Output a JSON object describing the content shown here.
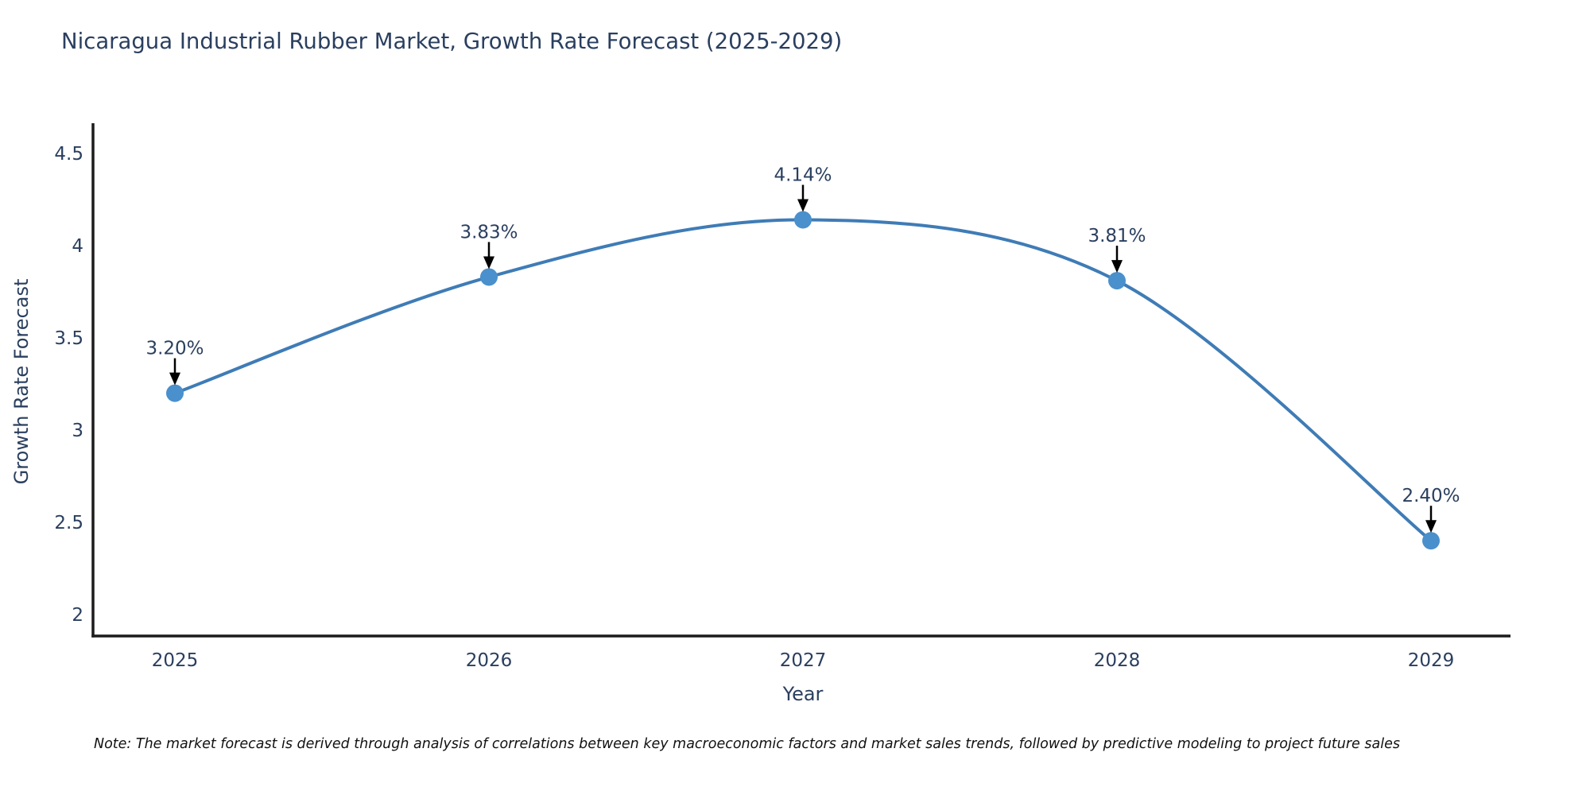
{
  "page": {
    "background": "#ffffff"
  },
  "chart_data": {
    "type": "line",
    "title": "Nicaragua Industrial Rubber Market, Growth Rate Forecast (2025-2029)",
    "xlabel": "Year",
    "ylabel": "Growth Rate Forecast",
    "categories": [
      "2025",
      "2026",
      "2027",
      "2028",
      "2029"
    ],
    "values": [
      3.2,
      3.83,
      4.14,
      3.81,
      2.4
    ],
    "point_labels": [
      "3.20%",
      "3.83%",
      "4.14%",
      "3.81%",
      "2.40%"
    ],
    "yticks": [
      4.5,
      4,
      3.5,
      3,
      2.5,
      2
    ],
    "ylim": [
      1.88,
      4.66
    ],
    "grid": false,
    "legend": "none",
    "line_shape": "spline",
    "line_color": "#3f7cb6",
    "marker_color": "#4a90cc",
    "axis_color": "#1c1c1c",
    "text_color": "#2a3f5f",
    "annotation_arrow_color": "#000000",
    "note": "Note: The market forecast is derived through analysis of correlations between key macroeconomic factors and market sales trends, followed by predictive modeling to project future sales"
  }
}
